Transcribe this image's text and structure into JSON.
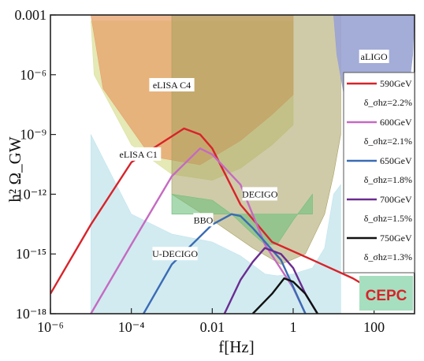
{
  "chart_data": {
    "type": "line",
    "title": "",
    "xlabel": "f[Hz]",
    "ylabel": "h² Ω_GW",
    "xscale": "log",
    "yscale": "log",
    "xlim": [
      1e-06,
      1000
    ],
    "ylim": [
      1e-18,
      0.001
    ],
    "x_ticks": [
      {
        "value": 1e-06,
        "label": "10⁻⁶"
      },
      {
        "value": 0.0001,
        "label": "10⁻⁴"
      },
      {
        "value": 0.01,
        "label": "0.01"
      },
      {
        "value": 1,
        "label": "1"
      },
      {
        "value": 100,
        "label": "100"
      }
    ],
    "y_ticks": [
      {
        "value": 0.001,
        "label": "0.001"
      },
      {
        "value": 1e-06,
        "label": "10⁻⁶"
      },
      {
        "value": 1e-09,
        "label": "10⁻⁹"
      },
      {
        "value": 1e-12,
        "label": "10⁻¹²"
      },
      {
        "value": 1e-15,
        "label": "10⁻¹⁵"
      },
      {
        "value": 1e-18,
        "label": "10⁻¹⁸"
      }
    ],
    "sensitivity_regions": [
      {
        "name": "eLISA C4",
        "color": "#e8a06a",
        "points": [
          [
            1e-05,
            0.001
          ],
          [
            2e-05,
            2e-07
          ],
          [
            0.0003,
            8e-11
          ],
          [
            0.005,
            3e-11
          ],
          [
            0.05,
            5e-10
          ],
          [
            0.3,
            1e-08
          ],
          [
            1,
            1e-07
          ],
          [
            1,
            0.001
          ]
        ]
      },
      {
        "name": "eLISA C1",
        "color": "#dde4a2",
        "points": [
          [
            1e-05,
            0.0005
          ],
          [
            1.2e-05,
            1e-06
          ],
          [
            0.0001,
            3e-10
          ],
          [
            0.001,
            1e-11
          ],
          [
            0.01,
            5e-12
          ],
          [
            0.05,
            2e-11
          ],
          [
            0.3,
            3e-10
          ],
          [
            1,
            3e-09
          ],
          [
            1,
            0.0005
          ]
        ]
      },
      {
        "name": "U-DECIGO",
        "color": "#c2e4ec",
        "points": [
          [
            1e-05,
            1e-09
          ],
          [
            0.0001,
            1e-13
          ],
          [
            0.001,
            1e-14
          ],
          [
            0.01,
            4e-15
          ],
          [
            0.05,
            8e-16
          ],
          [
            0.2,
            1e-16
          ],
          [
            0.4,
            8e-17
          ],
          [
            1,
            1e-16
          ],
          [
            3,
            2e-16
          ],
          [
            6,
            2e-15
          ],
          [
            10,
            1e-12
          ],
          [
            15,
            3e-12
          ],
          [
            15,
            1e-18
          ],
          [
            1e-05,
            1e-18
          ]
        ]
      },
      {
        "name": "DECIGO",
        "color": "#a8a060",
        "points": [
          [
            0.001,
            0.001
          ],
          [
            0.001,
            1e-12
          ],
          [
            0.01,
            5e-14
          ],
          [
            0.1,
            2e-15
          ],
          [
            0.5,
            3e-16
          ],
          [
            2,
            1e-15
          ],
          [
            6,
            1e-13
          ],
          [
            10,
            1e-11
          ],
          [
            15,
            1e-09
          ],
          [
            15,
            0.001
          ]
        ]
      },
      {
        "name": "BBO",
        "color": "#6fbf7d",
        "points": [
          [
            0.001,
            1e-12
          ],
          [
            0.01,
            5e-13
          ],
          [
            0.03,
            1e-13
          ],
          [
            0.1,
            1e-14
          ],
          [
            0.2,
            3e-15
          ],
          [
            0.4,
            3e-15
          ],
          [
            1,
            5e-14
          ],
          [
            3,
            1e-12
          ],
          [
            3,
            1e-13
          ],
          [
            0.001,
            1e-13
          ]
        ]
      },
      {
        "name": "aLIGO",
        "color": "#9aa3d4",
        "points": [
          [
            10,
            0.001
          ],
          [
            12,
            1e-05
          ],
          [
            20,
            3e-08
          ],
          [
            40,
            8e-09
          ],
          [
            100,
            5e-09
          ],
          [
            300,
            1e-08
          ],
          [
            700,
            1e-07
          ],
          [
            900,
            1e-05
          ],
          [
            1000,
            0.001
          ]
        ]
      }
    ],
    "series": [
      {
        "name": "590GeV",
        "color": "#d8232a",
        "annotation": "δ_σhz=2.2%",
        "points": [
          [
            1e-06,
            1e-17
          ],
          [
            1e-05,
            3e-14
          ],
          [
            0.0001,
            4e-11
          ],
          [
            0.001,
            8e-10
          ],
          [
            0.002,
            2e-09
          ],
          [
            0.005,
            1e-09
          ],
          [
            0.01,
            2e-10
          ],
          [
            0.05,
            3e-13
          ],
          [
            0.3,
            4e-15
          ],
          [
            3,
            5e-16
          ],
          [
            30,
            6e-17
          ],
          [
            500,
            2e-18
          ]
        ]
      },
      {
        "name": "600GeV",
        "color": "#c56ac1",
        "annotation": "δ_σhz=2.1%",
        "points": [
          [
            1e-05,
            1e-18
          ],
          [
            0.0001,
            3e-15
          ],
          [
            0.001,
            8e-12
          ],
          [
            0.005,
            2e-10
          ],
          [
            0.01,
            1e-10
          ],
          [
            0.05,
            3e-12
          ],
          [
            0.2,
            3e-15
          ],
          [
            1,
            2e-17
          ],
          [
            2,
            1e-18
          ]
        ]
      },
      {
        "name": "650GeV",
        "color": "#3a6cb4",
        "annotation": "δ_σhz=1.8%",
        "points": [
          [
            0.0002,
            1e-18
          ],
          [
            0.001,
            3e-16
          ],
          [
            0.01,
            3e-14
          ],
          [
            0.03,
            1e-13
          ],
          [
            0.05,
            8e-14
          ],
          [
            0.1,
            2e-14
          ],
          [
            0.5,
            5e-16
          ],
          [
            2,
            1e-18
          ]
        ]
      },
      {
        "name": "700GeV",
        "color": "#6b2c91",
        "annotation": "δ_σhz=1.5%",
        "points": [
          [
            0.02,
            1e-18
          ],
          [
            0.05,
            5e-17
          ],
          [
            0.1,
            4e-16
          ],
          [
            0.2,
            2e-15
          ],
          [
            0.5,
            1e-15
          ],
          [
            1,
            2e-16
          ],
          [
            2,
            1e-17
          ],
          [
            4,
            1e-18
          ]
        ]
      },
      {
        "name": "750GeV",
        "color": "#111111",
        "annotation": "δ_σhz=1.3%",
        "points": [
          [
            0.1,
            1e-18
          ],
          [
            0.3,
            1e-17
          ],
          [
            0.6,
            6e-17
          ],
          [
            1,
            4e-17
          ],
          [
            2,
            1e-17
          ],
          [
            4,
            1e-18
          ]
        ]
      }
    ],
    "legend": {
      "placement": "right",
      "logo": "CEPC"
    }
  }
}
